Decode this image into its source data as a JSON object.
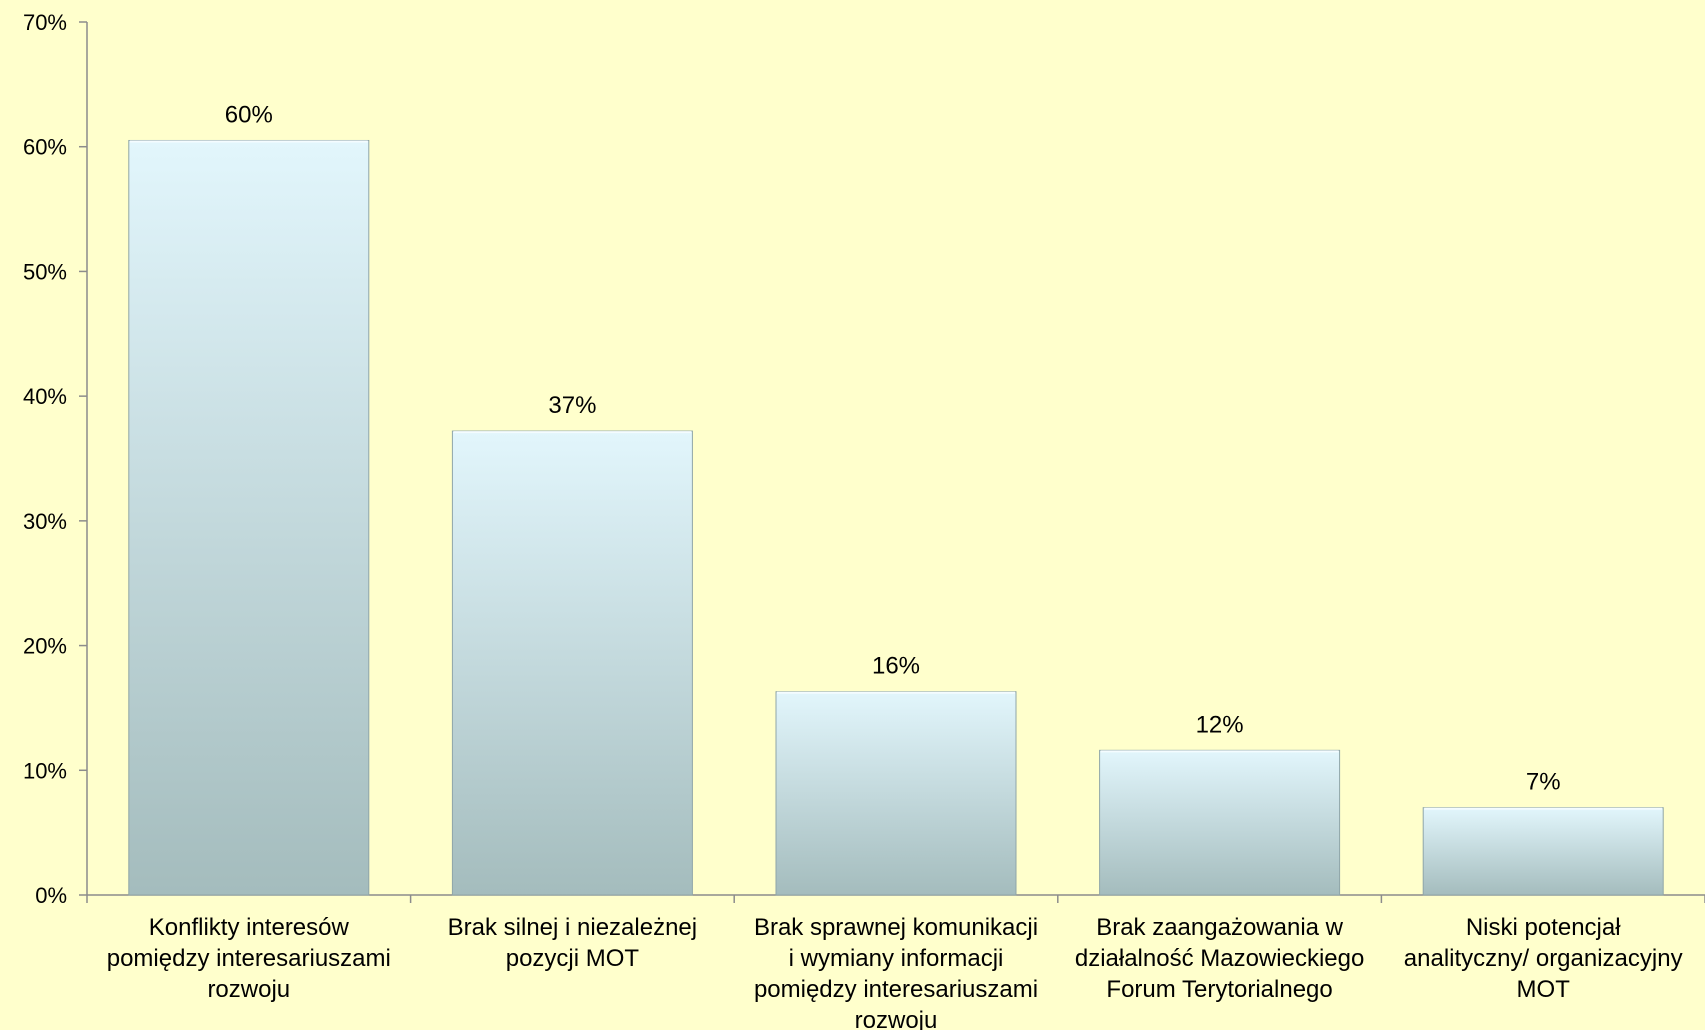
{
  "chart_data": {
    "type": "bar",
    "title": "",
    "xlabel": "",
    "ylabel": "",
    "ylim": [
      0,
      70
    ],
    "y_ticks": [
      0,
      10,
      20,
      30,
      40,
      50,
      60,
      70
    ],
    "y_tick_labels": [
      "0%",
      "10%",
      "20%",
      "30%",
      "40%",
      "50%",
      "60%",
      "70%"
    ],
    "grid": false,
    "legend": "none",
    "categories": [
      [
        "Konflikty interesów",
        "pomiędzy interesariuszami",
        "rozwoju"
      ],
      [
        "Brak silnej i niezależnej",
        "pozycji MOT"
      ],
      [
        "Brak sprawnej komunikacji",
        "i wymiany informacji",
        "pomiędzy interesariuszami",
        "rozwoju"
      ],
      [
        "Brak zaangażowania w",
        "działalność Mazowieckiego",
        "Forum Terytorialnego"
      ],
      [
        "Niski potencjał",
        "analityczny/ organizacyjny",
        "MOT"
      ]
    ],
    "values": [
      60.5,
      37.2,
      16.3,
      11.6,
      7.0
    ],
    "data_labels": [
      "60%",
      "37%",
      "16%",
      "12%",
      "7%"
    ],
    "colors": {
      "background": "#ffffcc",
      "bar_top": "#e2f6fc",
      "bar_bottom": "#a4bcbd",
      "bar_edge": "#8fa5a8",
      "axis": "#8c8c8c"
    }
  }
}
